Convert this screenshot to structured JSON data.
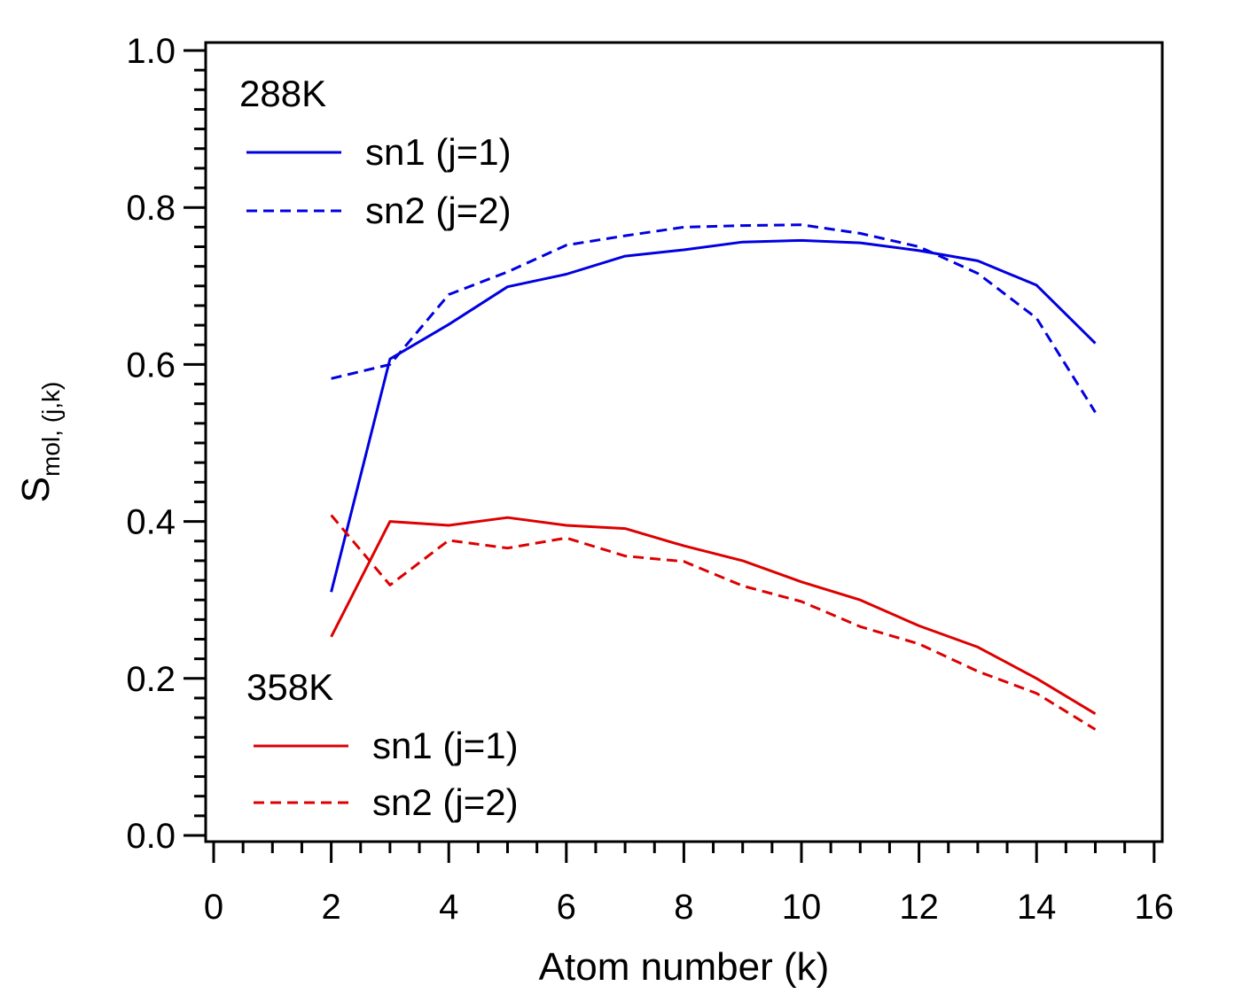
{
  "chart_data": {
    "type": "line",
    "title": "",
    "xlabel": "Atom number (k)",
    "ylabel_main": "S",
    "ylabel_sub": "mol, (j,k)",
    "xlim": [
      0,
      16
    ],
    "ylim": [
      0.0,
      1.0
    ],
    "xticks": [
      0,
      2,
      4,
      6,
      8,
      10,
      12,
      14,
      16
    ],
    "xtick_labels": [
      "0",
      "2",
      "4",
      "6",
      "8",
      "10",
      "12",
      "14",
      "16"
    ],
    "yticks": [
      0.0,
      0.2,
      0.4,
      0.6,
      0.8,
      1.0
    ],
    "ytick_labels": [
      "0.0",
      "0.2",
      "0.4",
      "0.6",
      "0.8",
      "1.0"
    ],
    "grid": false,
    "legends": [
      {
        "title": "288K",
        "placement": "top-left",
        "entries": [
          {
            "label": "sn1 (j=1)",
            "series": "288K-sn1"
          },
          {
            "label": "sn2 (j=2)",
            "series": "288K-sn2"
          }
        ]
      },
      {
        "title": "358K",
        "placement": "bottom-left",
        "entries": [
          {
            "label": "sn1 (j=1)",
            "series": "358K-sn1"
          },
          {
            "label": "sn2 (j=2)",
            "series": "358K-sn2"
          }
        ]
      }
    ],
    "x": [
      2,
      3,
      4,
      5,
      6,
      7,
      8,
      9,
      10,
      11,
      12,
      13,
      14,
      15
    ],
    "series": [
      {
        "id": "288K-sn1",
        "name": "288K sn1 (j=1)",
        "color": "#0000e0",
        "dash": "solid",
        "values": [
          0.31,
          0.607,
          0.651,
          0.699,
          0.715,
          0.738,
          0.746,
          0.756,
          0.758,
          0.755,
          0.745,
          0.732,
          0.701,
          0.627
        ]
      },
      {
        "id": "288K-sn2",
        "name": "288K sn2 (j=2)",
        "color": "#0000e0",
        "dash": "dashed",
        "values": [
          0.582,
          0.6,
          0.689,
          0.718,
          0.752,
          0.764,
          0.775,
          0.777,
          0.778,
          0.767,
          0.75,
          0.716,
          0.659,
          0.539
        ]
      },
      {
        "id": "358K-sn1",
        "name": "358K sn1 (j=1)",
        "color": "#dd0000",
        "dash": "solid",
        "values": [
          0.253,
          0.4,
          0.395,
          0.405,
          0.395,
          0.391,
          0.369,
          0.35,
          0.323,
          0.3,
          0.267,
          0.24,
          0.2,
          0.155
        ]
      },
      {
        "id": "358K-sn2",
        "name": "358K sn2 (j=2)",
        "color": "#dd0000",
        "dash": "dashed",
        "values": [
          0.408,
          0.319,
          0.376,
          0.366,
          0.379,
          0.356,
          0.349,
          0.318,
          0.298,
          0.266,
          0.244,
          0.209,
          0.181,
          0.135
        ]
      }
    ]
  }
}
